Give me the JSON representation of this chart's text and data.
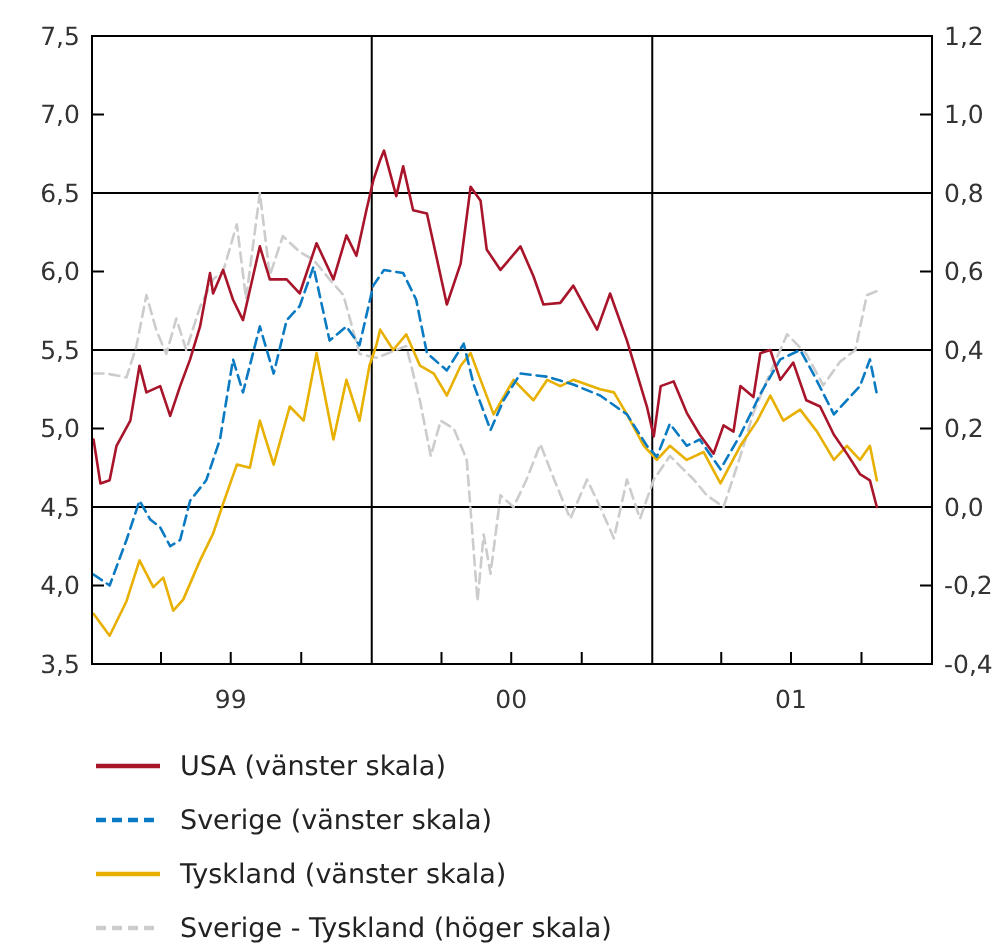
{
  "chart_data": {
    "type": "line",
    "xlim": [
      "1999-01-01",
      "2002-01-01"
    ],
    "xticks": [
      {
        "value": "1999-04-01",
        "label": null
      },
      {
        "value": "1999-07-01",
        "label": "99"
      },
      {
        "value": "1999-10-01",
        "label": null
      },
      {
        "value": "2000-04-01",
        "label": null
      },
      {
        "value": "2000-07-01",
        "label": "00"
      },
      {
        "value": "2000-10-01",
        "label": null
      },
      {
        "value": "2001-04-01",
        "label": null
      },
      {
        "value": "2001-07-01",
        "label": "01"
      },
      {
        "value": "2001-10-01",
        "label": null
      }
    ],
    "ylim": [
      3.5,
      7.5
    ],
    "yticks": [
      {
        "value": 3.5,
        "label": "3,5"
      },
      {
        "value": 4.0,
        "label": "4,0"
      },
      {
        "value": 4.5,
        "label": "4,5"
      },
      {
        "value": 5.0,
        "label": "5,0"
      },
      {
        "value": 5.5,
        "label": "5,5"
      },
      {
        "value": 6.0,
        "label": "6,0"
      },
      {
        "value": 6.5,
        "label": "6,5"
      },
      {
        "value": 7.0,
        "label": "7,0"
      },
      {
        "value": 7.5,
        "label": "7,5"
      }
    ],
    "y2lim": [
      -0.4,
      1.2
    ],
    "y2ticks": [
      {
        "value": -0.4,
        "label": "-0,4"
      },
      {
        "value": -0.2,
        "label": "-0,2"
      },
      {
        "value": 0.0,
        "label": "0,0"
      },
      {
        "value": 0.2,
        "label": "0,2"
      },
      {
        "value": 0.4,
        "label": "0,4"
      },
      {
        "value": 0.6,
        "label": "0,6"
      },
      {
        "value": 0.8,
        "label": "0,8"
      },
      {
        "value": 1.0,
        "label": "1,0"
      },
      {
        "value": 1.2,
        "label": "1,2"
      }
    ],
    "legend": "bottom",
    "ref_lines": [
      {
        "axis": "y",
        "value": 4.5,
        "color": "#000000"
      },
      {
        "axis": "y",
        "value": 5.5,
        "color": "#000000"
      },
      {
        "axis": "y",
        "value": 6.5,
        "color": "#000000"
      },
      {
        "axis": "x",
        "value": "2000-01-01",
        "color": "#000000"
      },
      {
        "axis": "x",
        "value": "2001-01-01",
        "color": "#000000"
      }
    ],
    "series": [
      {
        "name": "Sverige - Tyskland (höger skala)",
        "color": "#cccccc",
        "axis": "y2",
        "line_style": "dashed",
        "x": [
          "1999-01-03",
          "1999-01-20",
          "1999-02-15",
          "1999-02-28",
          "1999-03-13",
          "1999-03-26",
          "1999-04-08",
          "1999-04-21",
          "1999-05-04",
          "1999-05-22",
          "1999-06-08",
          "1999-06-21",
          "1999-07-09",
          "1999-07-21",
          "1999-08-08",
          "1999-08-21",
          "1999-09-07",
          "1999-09-29",
          "1999-10-17",
          "1999-11-07",
          "1999-11-25",
          "1999-12-16",
          "2000-01-07",
          "2000-01-20",
          "2000-02-15",
          "2000-03-04",
          "2000-03-18",
          "2000-03-31",
          "2000-04-17",
          "2000-05-04",
          "2000-05-18",
          "2000-05-26",
          "2000-06-04",
          "2000-06-17",
          "2000-07-04",
          "2000-07-21",
          "2000-08-08",
          "2000-08-26",
          "2000-09-16",
          "2000-10-08",
          "2000-10-25",
          "2000-11-12",
          "2000-11-29",
          "2000-12-16",
          "2001-01-03",
          "2001-01-24",
          "2001-02-24",
          "2001-03-13",
          "2001-04-04",
          "2001-04-26",
          "2001-05-13",
          "2001-05-30",
          "2001-06-26",
          "2001-07-21",
          "2001-08-12",
          "2001-09-03",
          "2001-09-23",
          "2001-10-08",
          "2001-10-21"
        ],
        "values": [
          0.34,
          0.34,
          0.33,
          0.41,
          0.54,
          0.45,
          0.39,
          0.48,
          0.4,
          0.51,
          0.58,
          0.6,
          0.72,
          0.53,
          0.8,
          0.59,
          0.69,
          0.65,
          0.63,
          0.58,
          0.54,
          0.39,
          0.38,
          0.39,
          0.41,
          0.27,
          0.13,
          0.22,
          0.2,
          0.12,
          -0.24,
          -0.07,
          -0.17,
          0.03,
          0.0,
          0.07,
          0.16,
          0.07,
          -0.03,
          0.07,
          0.0,
          -0.08,
          0.07,
          -0.03,
          0.07,
          0.13,
          0.07,
          0.03,
          0.0,
          0.13,
          0.24,
          0.32,
          0.44,
          0.39,
          0.31,
          0.37,
          0.4,
          0.54,
          0.55
        ]
      },
      {
        "name": "Tyskland (vänster skala)",
        "color": "#e8b000",
        "line_style": "solid",
        "x": [
          "1999-01-03",
          "1999-01-24",
          "1999-02-15",
          "1999-03-04",
          "1999-03-22",
          "1999-04-04",
          "1999-04-17",
          "1999-04-30",
          "1999-05-22",
          "1999-06-08",
          "1999-06-21",
          "1999-07-09",
          "1999-07-26",
          "1999-08-08",
          "1999-08-26",
          "1999-09-16",
          "1999-10-04",
          "1999-10-21",
          "1999-11-12",
          "1999-11-29",
          "1999-12-16",
          "1999-12-29",
          "2000-01-07",
          "2000-01-12",
          "2000-01-29",
          "2000-02-15",
          "2000-03-04",
          "2000-03-22",
          "2000-04-08",
          "2000-04-26",
          "2000-05-09",
          "2000-05-22",
          "2000-06-08",
          "2000-07-04",
          "2000-07-30",
          "2000-08-17",
          "2000-09-03",
          "2000-09-20",
          "2000-10-25",
          "2000-11-12",
          "2000-11-29",
          "2000-12-21",
          "2001-01-07",
          "2001-01-24",
          "2001-02-15",
          "2001-03-09",
          "2001-03-31",
          "2001-04-26",
          "2001-05-18",
          "2001-06-04",
          "2001-06-21",
          "2001-07-13",
          "2001-08-04",
          "2001-08-26",
          "2001-09-12",
          "2001-09-29",
          "2001-10-12",
          "2001-10-21"
        ],
        "values": [
          3.82,
          3.68,
          3.9,
          4.16,
          3.99,
          4.05,
          3.84,
          3.91,
          4.16,
          4.33,
          4.52,
          4.77,
          4.75,
          5.05,
          4.77,
          5.14,
          5.05,
          5.48,
          4.93,
          5.31,
          5.05,
          5.4,
          5.53,
          5.63,
          5.5,
          5.6,
          5.4,
          5.35,
          5.21,
          5.4,
          5.48,
          5.31,
          5.09,
          5.31,
          5.18,
          5.31,
          5.27,
          5.31,
          5.25,
          5.23,
          5.09,
          4.89,
          4.8,
          4.89,
          4.8,
          4.85,
          4.65,
          4.89,
          5.05,
          5.21,
          5.05,
          5.12,
          4.98,
          4.8,
          4.89,
          4.8,
          4.89,
          4.67
        ]
      },
      {
        "name": "Sverige (vänster skala)",
        "color": "#0a7ac2",
        "line_style": "dashed",
        "x": [
          "1999-01-03",
          "1999-01-24",
          "1999-02-15",
          "1999-03-04",
          "1999-03-18",
          "1999-03-31",
          "1999-04-13",
          "1999-04-26",
          "1999-05-09",
          "1999-05-30",
          "1999-06-17",
          "1999-07-04",
          "1999-07-17",
          "1999-08-08",
          "1999-08-26",
          "1999-09-12",
          "1999-09-29",
          "1999-10-17",
          "1999-11-07",
          "1999-11-29",
          "1999-12-16",
          "2000-01-03",
          "2000-01-17",
          "2000-02-11",
          "2000-02-28",
          "2000-03-13",
          "2000-04-08",
          "2000-04-30",
          "2000-05-13",
          "2000-06-04",
          "2000-06-21",
          "2000-07-13",
          "2000-08-17",
          "2000-09-20",
          "2000-10-25",
          "2000-11-29",
          "2000-12-25",
          "2001-01-07",
          "2001-01-24",
          "2001-02-15",
          "2001-03-04",
          "2001-03-31",
          "2001-04-26",
          "2001-05-22",
          "2001-06-17",
          "2001-07-13",
          "2001-07-30",
          "2001-08-26",
          "2001-09-12",
          "2001-09-29",
          "2001-10-12",
          "2001-10-21"
        ],
        "values": [
          4.07,
          4.0,
          4.29,
          4.54,
          4.42,
          4.37,
          4.25,
          4.29,
          4.54,
          4.67,
          4.93,
          5.44,
          5.23,
          5.65,
          5.35,
          5.69,
          5.78,
          6.03,
          5.56,
          5.65,
          5.53,
          5.91,
          6.01,
          5.99,
          5.82,
          5.48,
          5.37,
          5.54,
          5.28,
          4.99,
          5.18,
          5.35,
          5.33,
          5.28,
          5.21,
          5.09,
          4.89,
          4.82,
          5.03,
          4.89,
          4.93,
          4.74,
          4.96,
          5.22,
          5.44,
          5.5,
          5.35,
          5.09,
          5.18,
          5.27,
          5.44,
          5.22
        ]
      },
      {
        "name": "USA (vänster skala)",
        "color": "#a8152b",
        "line_style": "solid",
        "x": [
          "1999-01-03",
          "1999-01-12",
          "1999-01-24",
          "1999-02-02",
          "1999-02-20",
          "1999-03-04",
          "1999-03-13",
          "1999-03-31",
          "1999-04-13",
          "1999-04-26",
          "1999-05-09",
          "1999-05-22",
          "1999-06-04",
          "1999-06-08",
          "1999-06-21",
          "1999-07-04",
          "1999-07-17",
          "1999-08-08",
          "1999-08-21",
          "1999-09-12",
          "1999-09-29",
          "1999-10-21",
          "1999-11-12",
          "1999-11-29",
          "1999-12-12",
          "1999-12-25",
          "2000-01-03",
          "2000-01-12",
          "2000-01-17",
          "2000-02-02",
          "2000-02-11",
          "2000-02-24",
          "2000-03-13",
          "2000-04-08",
          "2000-04-26",
          "2000-05-09",
          "2000-05-22",
          "2000-05-30",
          "2000-06-17",
          "2000-07-13",
          "2000-07-30",
          "2000-08-12",
          "2000-09-03",
          "2000-09-20",
          "2000-10-21",
          "2000-11-07",
          "2000-11-29",
          "2000-12-12",
          "2000-12-25",
          "2001-01-03",
          "2001-01-12",
          "2001-01-29",
          "2001-02-15",
          "2001-03-04",
          "2001-03-22",
          "2001-04-04",
          "2001-04-17",
          "2001-04-26",
          "2001-05-13",
          "2001-05-22",
          "2001-06-04",
          "2001-06-17",
          "2001-07-04",
          "2001-07-21",
          "2001-08-08",
          "2001-08-26",
          "2001-09-12",
          "2001-09-29",
          "2001-10-12",
          "2001-10-21"
        ],
        "values": [
          4.93,
          4.65,
          4.67,
          4.89,
          5.05,
          5.4,
          5.23,
          5.27,
          5.08,
          5.27,
          5.44,
          5.65,
          5.99,
          5.86,
          6.01,
          5.82,
          5.69,
          6.16,
          5.95,
          5.95,
          5.86,
          6.18,
          5.95,
          6.23,
          6.1,
          6.39,
          6.58,
          6.71,
          6.77,
          6.48,
          6.67,
          6.39,
          6.37,
          5.79,
          6.05,
          6.54,
          6.45,
          6.14,
          6.01,
          6.16,
          5.97,
          5.79,
          5.8,
          5.91,
          5.63,
          5.86,
          5.56,
          5.35,
          5.14,
          4.95,
          5.27,
          5.3,
          5.1,
          4.96,
          4.84,
          5.02,
          4.98,
          5.27,
          5.2,
          5.48,
          5.5,
          5.31,
          5.42,
          5.18,
          5.14,
          4.96,
          4.84,
          4.71,
          4.67,
          4.5
        ]
      }
    ]
  }
}
